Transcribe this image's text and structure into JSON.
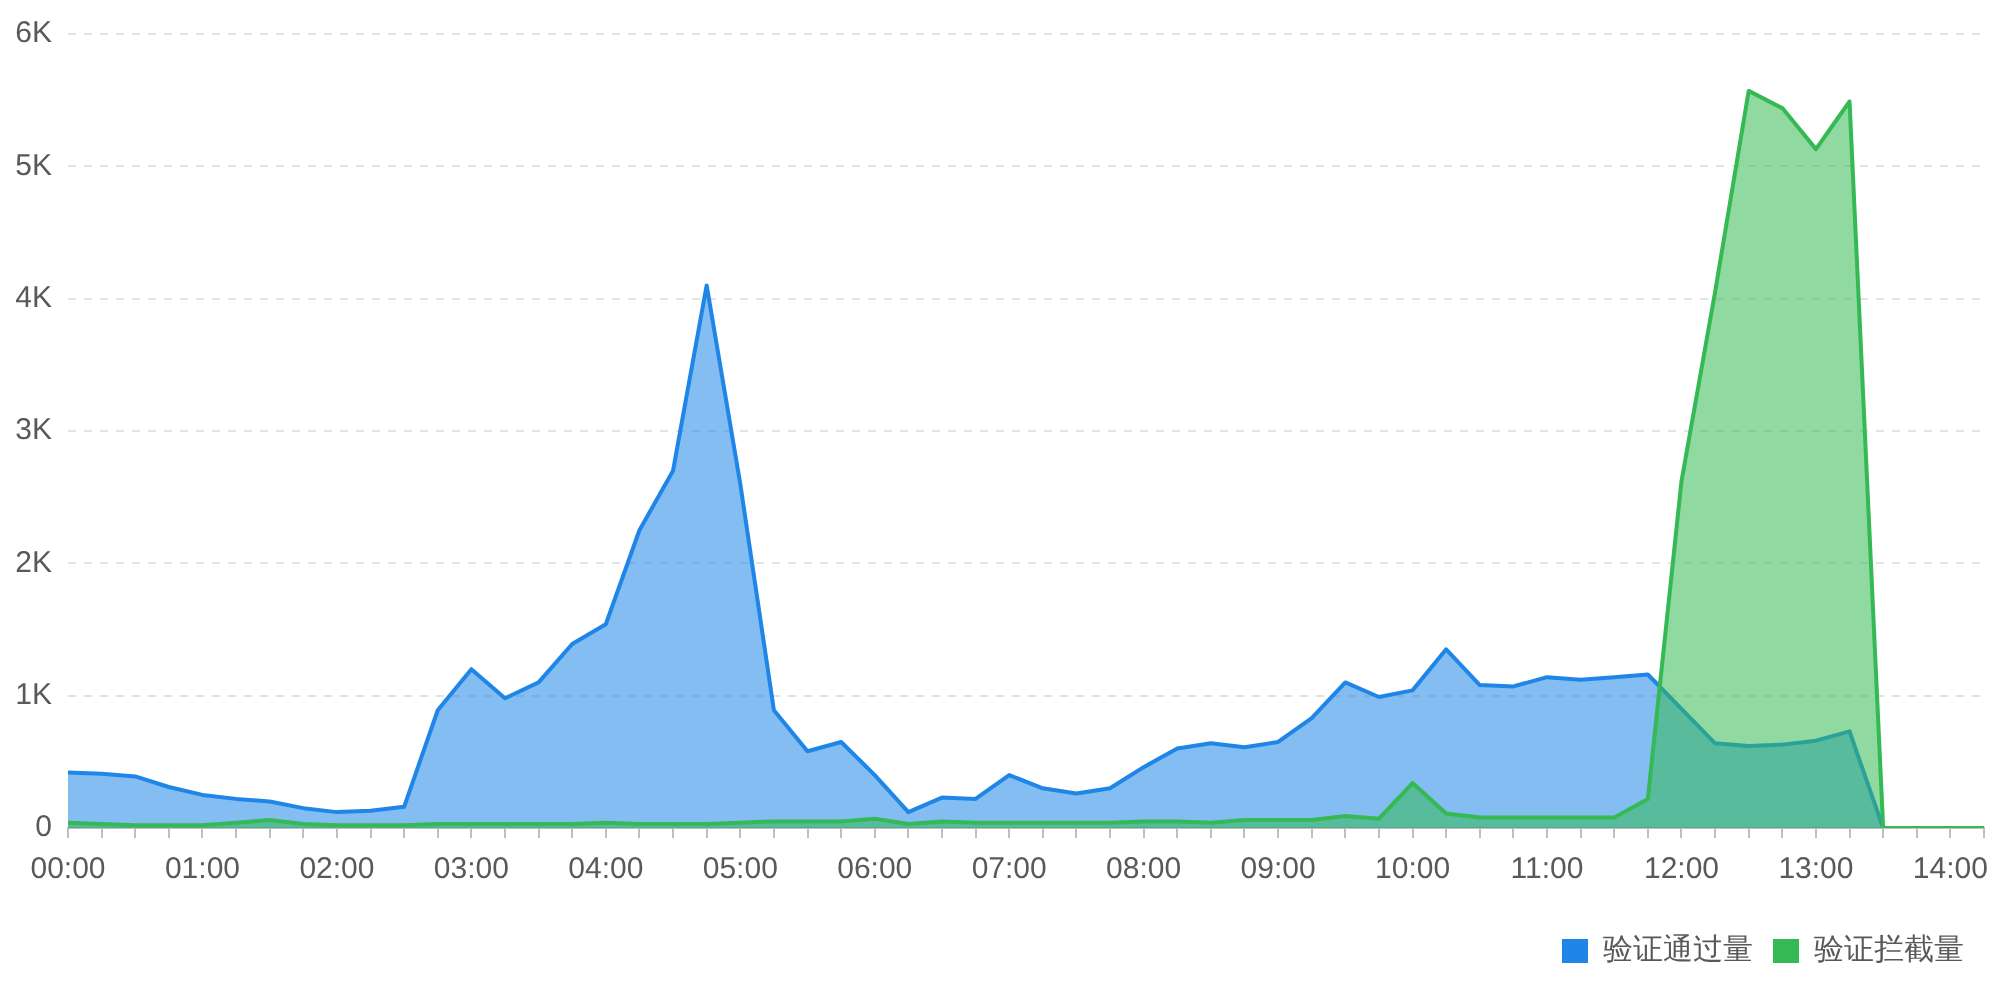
{
  "chart_data": {
    "type": "area",
    "x": [
      0,
      0.25,
      0.5,
      0.75,
      1,
      1.25,
      1.5,
      1.75,
      2,
      2.25,
      2.5,
      2.75,
      3,
      3.25,
      3.5,
      3.75,
      4,
      4.25,
      4.5,
      4.75,
      5,
      5.25,
      5.5,
      5.75,
      6,
      6.25,
      6.5,
      6.75,
      7,
      7.25,
      7.5,
      7.75,
      8,
      8.25,
      8.5,
      8.75,
      9,
      9.25,
      9.5,
      9.75,
      10,
      10.25,
      10.5,
      10.75,
      11,
      11.25,
      11.5,
      11.75,
      12,
      12.25,
      12.5,
      12.75,
      13,
      13.25,
      13.5,
      13.75,
      14,
      14.25
    ],
    "series": [
      {
        "name": "验证通过量",
        "color": "#1f86e8",
        "values": [
          420,
          410,
          390,
          310,
          250,
          220,
          200,
          150,
          120,
          130,
          160,
          890,
          1200,
          980,
          1100,
          1390,
          1540,
          2250,
          2700,
          4100,
          2600,
          890,
          580,
          650,
          400,
          120,
          230,
          220,
          400,
          300,
          260,
          300,
          460,
          600,
          640,
          610,
          650,
          830,
          1100,
          990,
          1040,
          1350,
          1080,
          1070,
          1140,
          1120,
          1140,
          1160,
          900,
          640,
          620,
          630,
          660,
          730,
          0,
          0,
          0,
          0
        ]
      },
      {
        "name": "验证拦截量",
        "color": "#34b954",
        "values": [
          40,
          30,
          20,
          20,
          20,
          40,
          60,
          30,
          20,
          20,
          20,
          30,
          30,
          30,
          30,
          30,
          40,
          30,
          30,
          30,
          40,
          50,
          50,
          50,
          70,
          30,
          50,
          40,
          40,
          40,
          40,
          40,
          50,
          50,
          40,
          60,
          60,
          60,
          90,
          70,
          340,
          110,
          80,
          80,
          80,
          80,
          80,
          220,
          2620,
          4050,
          5570,
          5440,
          5130,
          5490,
          0,
          0,
          0,
          0
        ]
      }
    ],
    "xlim": [
      0,
      14.25
    ],
    "xticks": [
      {
        "value": 0,
        "label": "00:00"
      },
      {
        "value": 0.25,
        "label": null
      },
      {
        "value": 0.5,
        "label": null
      },
      {
        "value": 0.75,
        "label": null
      },
      {
        "value": 1,
        "label": "01:00"
      },
      {
        "value": 1.25,
        "label": null
      },
      {
        "value": 1.5,
        "label": null
      },
      {
        "value": 1.75,
        "label": null
      },
      {
        "value": 2,
        "label": "02:00"
      },
      {
        "value": 2.25,
        "label": null
      },
      {
        "value": 2.5,
        "label": null
      },
      {
        "value": 2.75,
        "label": null
      },
      {
        "value": 3,
        "label": "03:00"
      },
      {
        "value": 3.25,
        "label": null
      },
      {
        "value": 3.5,
        "label": null
      },
      {
        "value": 3.75,
        "label": null
      },
      {
        "value": 4,
        "label": "04:00"
      },
      {
        "value": 4.25,
        "label": null
      },
      {
        "value": 4.5,
        "label": null
      },
      {
        "value": 4.75,
        "label": null
      },
      {
        "value": 5,
        "label": "05:00"
      },
      {
        "value": 5.25,
        "label": null
      },
      {
        "value": 5.5,
        "label": null
      },
      {
        "value": 5.75,
        "label": null
      },
      {
        "value": 6,
        "label": "06:00"
      },
      {
        "value": 6.25,
        "label": null
      },
      {
        "value": 6.5,
        "label": null
      },
      {
        "value": 6.75,
        "label": null
      },
      {
        "value": 7,
        "label": "07:00"
      },
      {
        "value": 7.25,
        "label": null
      },
      {
        "value": 7.5,
        "label": null
      },
      {
        "value": 7.75,
        "label": null
      },
      {
        "value": 8,
        "label": "08:00"
      },
      {
        "value": 8.25,
        "label": null
      },
      {
        "value": 8.5,
        "label": null
      },
      {
        "value": 8.75,
        "label": null
      },
      {
        "value": 9,
        "label": "09:00"
      },
      {
        "value": 9.25,
        "label": null
      },
      {
        "value": 9.5,
        "label": null
      },
      {
        "value": 9.75,
        "label": null
      },
      {
        "value": 10,
        "label": "10:00"
      },
      {
        "value": 10.25,
        "label": null
      },
      {
        "value": 10.5,
        "label": null
      },
      {
        "value": 10.75,
        "label": null
      },
      {
        "value": 11,
        "label": "11:00"
      },
      {
        "value": 11.25,
        "label": null
      },
      {
        "value": 11.5,
        "label": null
      },
      {
        "value": 11.75,
        "label": null
      },
      {
        "value": 12,
        "label": "12:00"
      },
      {
        "value": 12.25,
        "label": null
      },
      {
        "value": 12.5,
        "label": null
      },
      {
        "value": 12.75,
        "label": null
      },
      {
        "value": 13,
        "label": "13:00"
      },
      {
        "value": 13.25,
        "label": null
      },
      {
        "value": 13.5,
        "label": null
      },
      {
        "value": 13.75,
        "label": null
      },
      {
        "value": 14,
        "label": "14:00"
      },
      {
        "value": 14.25,
        "label": null
      }
    ],
    "ylim": [
      0,
      6000
    ],
    "yticks": [
      0,
      {
        "value": 1000,
        "label": "1K"
      },
      {
        "value": 2000,
        "label": "2K"
      },
      {
        "value": 3000,
        "label": "3K"
      },
      {
        "value": 4000,
        "label": "4K"
      },
      {
        "value": 5000,
        "label": "5K"
      },
      {
        "value": 6000,
        "label": "6K"
      }
    ],
    "grid": "y",
    "legend": "bottom right"
  }
}
